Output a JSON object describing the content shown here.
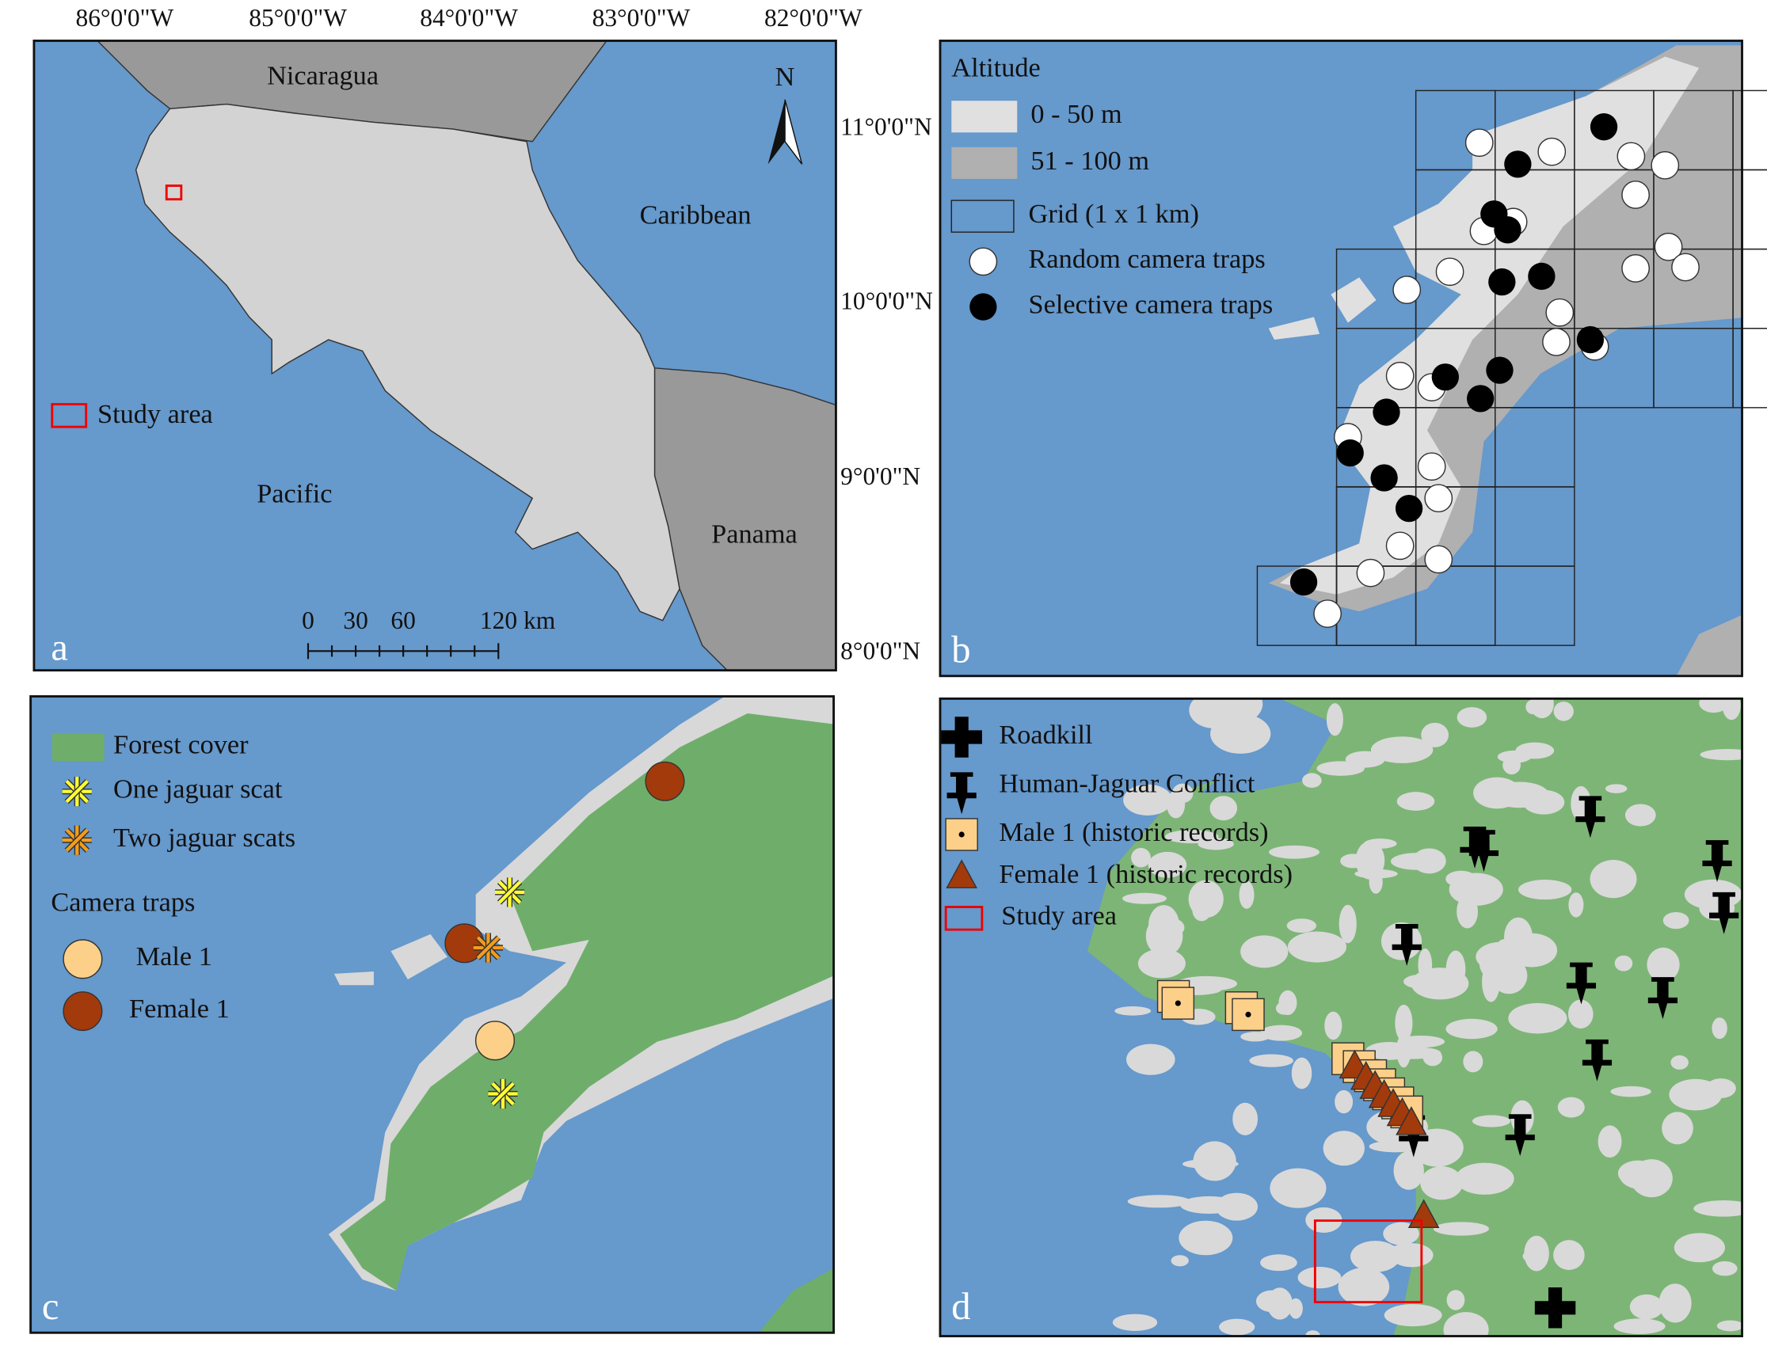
{
  "panels": {
    "a": {
      "letter": "a",
      "lon_labels": [
        "86°0'0\"W",
        "85°0'0\"W",
        "84°0'0\"W",
        "83°0'0\"W",
        "82°0'0\"W"
      ],
      "lat_labels": [
        "11°0'0\"N",
        "10°0'0\"N",
        "9°0'0\"N",
        "8°0'0\"N"
      ],
      "places": [
        "Nicaragua",
        "Caribbean",
        "Pacific",
        "Panama"
      ],
      "north": "N",
      "legend": "Study area",
      "scale_labels": [
        "0",
        "30",
        "60",
        "120 km"
      ]
    },
    "b": {
      "letter": "b",
      "legend_title": "Altitude",
      "legend": [
        "0 - 50 m",
        "51 - 100 m",
        "Grid (1 x 1 km)",
        "Random camera traps",
        "Selective camera traps"
      ]
    },
    "c": {
      "letter": "c",
      "legend": [
        "Forest cover",
        "One jaguar scat",
        "Two jaguar scats"
      ],
      "camera_title": "Camera traps",
      "camera_legend": [
        "Male 1",
        "Female 1"
      ]
    },
    "d": {
      "letter": "d",
      "legend": [
        "Roadkill",
        "Human-Jaguar Conflict",
        "Male 1 (historic records)",
        "Female 1 (historic records)",
        "Study area"
      ]
    }
  }
}
